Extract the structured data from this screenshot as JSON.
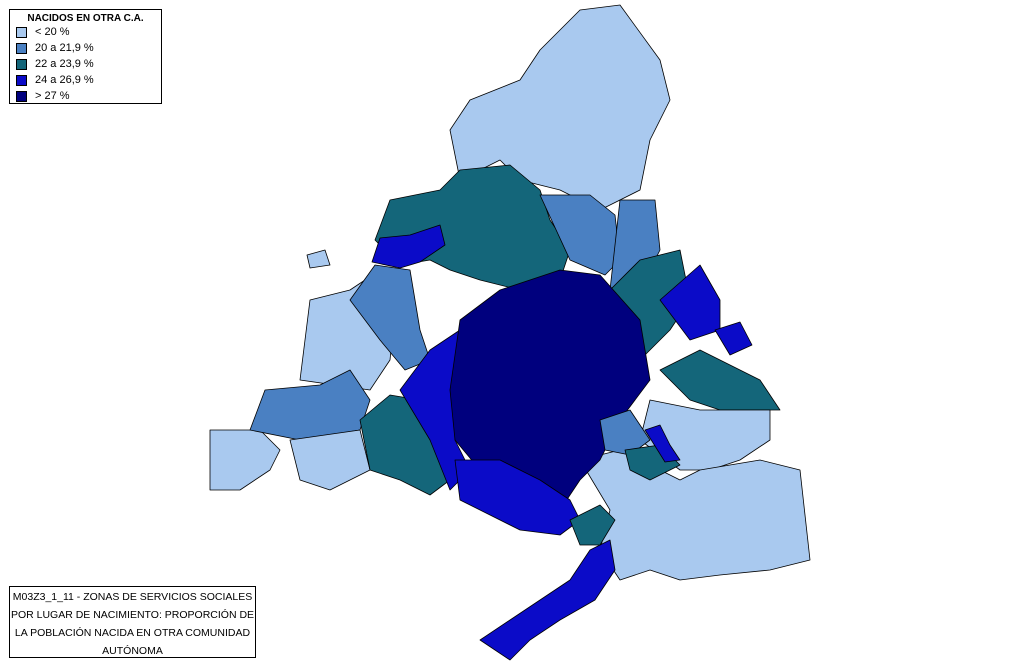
{
  "legend": {
    "title": "NACIDOS EN OTRA C.A.",
    "items": [
      {
        "label": "< 20 %",
        "color": "#a9c9ef"
      },
      {
        "label": "20 a 21,9 %",
        "color": "#4a80c2"
      },
      {
        "label": "22 a 23,9 %",
        "color": "#14667a"
      },
      {
        "label": "24 a 26,9 %",
        "color": "#0b0bc8"
      },
      {
        "label": "> 27 %",
        "color": "#00007e"
      }
    ]
  },
  "caption": "M03Z3_1_11 - ZONAS DE SERVICIOS SOCIALES POR LUGAR DE NACIMIENTO: PROPORCIÓN DE LA POBLACIÓN NACIDA EN OTRA COMUNIDAD AUTÓNOMA"
}
